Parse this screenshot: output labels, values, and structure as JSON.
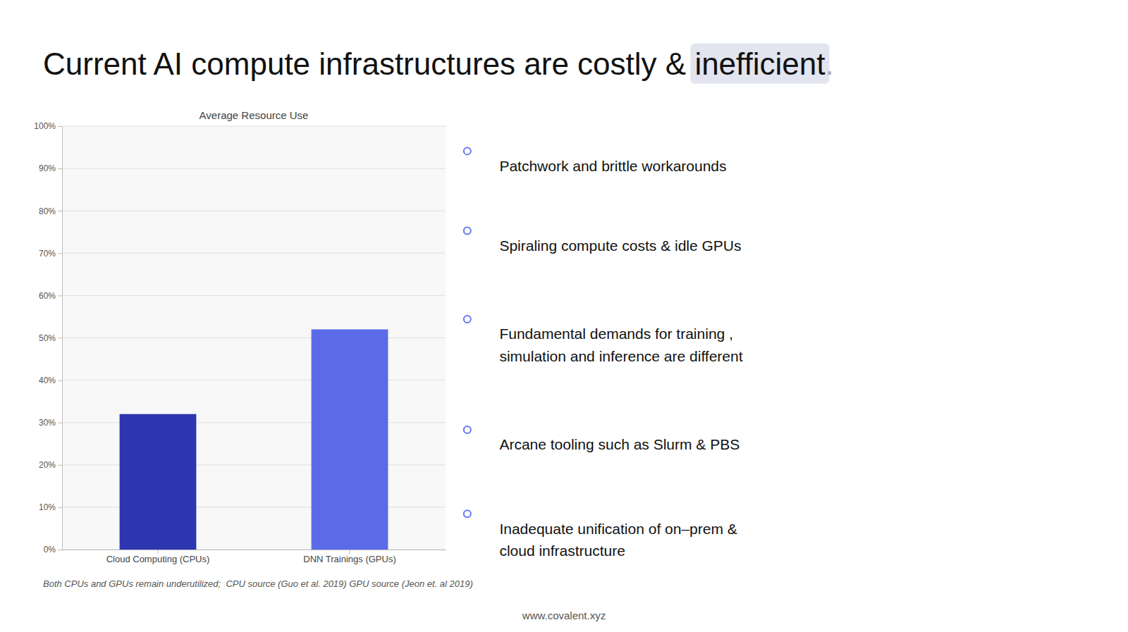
{
  "chart_data": {
    "type": "bar",
    "title": "Average Resource Use",
    "categories": [
      "Cloud Computing (CPUs)",
      "DNN Trainings (GPUs)"
    ],
    "values": [
      32,
      52
    ],
    "colors": [
      "#2e35b0",
      "#5b6be8"
    ],
    "ylim": [
      0,
      100
    ],
    "yticks": [
      {
        "value": 0,
        "label": "0%"
      },
      {
        "value": 10,
        "label": "10%"
      },
      {
        "value": 20,
        "label": "20%"
      },
      {
        "value": 30,
        "label": "30%"
      },
      {
        "value": 40,
        "label": "40%"
      },
      {
        "value": 50,
        "label": "50%"
      },
      {
        "value": 60,
        "label": "60%"
      },
      {
        "value": 70,
        "label": "70%"
      },
      {
        "value": 80,
        "label": "80%"
      },
      {
        "value": 90,
        "label": "90%"
      },
      {
        "value": 100,
        "label": "100%"
      }
    ],
    "grid": true
  },
  "heading": [
    "Current AI compute infrastructures are costly & ",
    "inefficient",
    "."
  ],
  "bullets": [
    "Patchwork and brittle workarounds",
    "Spiraling compute costs & idle GPUs",
    "Fundamental demands for training ,\nsimulation and inference are different",
    "Arcane tooling such as Slurm & PBS",
    "Inadequate unification of on–prem &\ncloud infrastructure"
  ],
  "source": "Both CPUs and GPUs remain underutilized;  CPU source (Guo et al. 2019) GPU source (Jeon et. al 2019)",
  "footer": "www.covalent.xyz"
}
